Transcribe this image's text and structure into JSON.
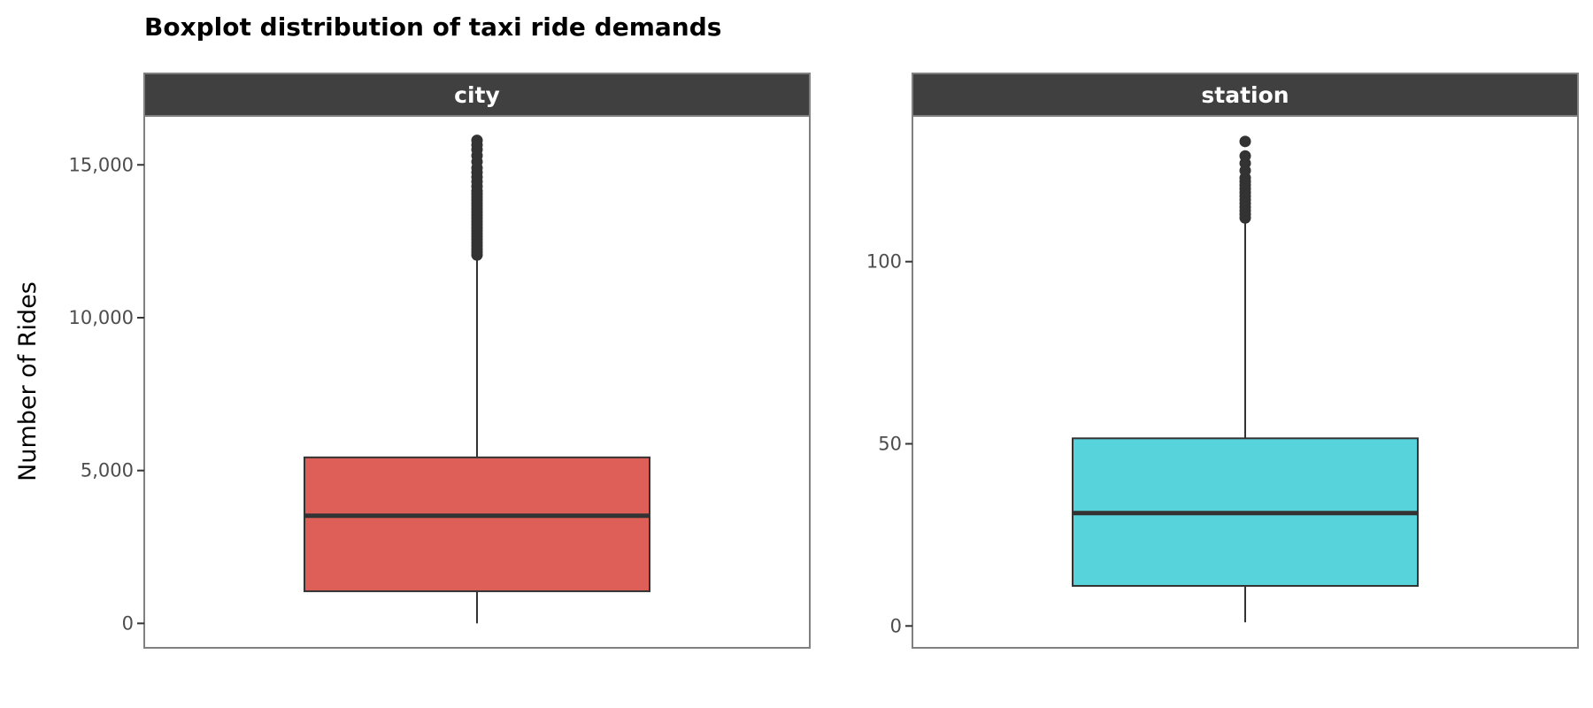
{
  "chart_data": {
    "type": "boxplot",
    "title": "Boxplot distribution of taxi ride demands",
    "ylabel": "Number of Rides",
    "xlabel": "",
    "grid": false,
    "legend": "none",
    "colors": {
      "strip": "#404040",
      "strip_text": "#ffffff",
      "panel_border": "#808080",
      "line": "#333333"
    },
    "panels": [
      {
        "name": "city",
        "ylim": [
          -800,
          16600
        ],
        "ticks": [
          0,
          5000,
          10000,
          15000
        ],
        "tick_labels": [
          "0",
          "5,000",
          "10,000",
          "15,000"
        ],
        "fill": "#de5e58",
        "box": {
          "whisker_low": 0,
          "q1": 1050,
          "median": 3520,
          "q3": 5430,
          "whisker_high": 11980
        },
        "outliers": [
          12050,
          12150,
          12250,
          12350,
          12450,
          12550,
          12650,
          12750,
          12850,
          12950,
          13050,
          13150,
          13250,
          13350,
          13450,
          13550,
          13650,
          13750,
          13850,
          13950,
          14050,
          14150,
          14300,
          14450,
          14600,
          14750,
          14900,
          15100,
          15300,
          15500,
          15650,
          15800
        ]
      },
      {
        "name": "station",
        "ylim": [
          -6,
          140
        ],
        "ticks": [
          0,
          50,
          100
        ],
        "tick_labels": [
          "0",
          "50",
          "100"
        ],
        "fill": "#57d3db",
        "box": {
          "whisker_low": 1,
          "q1": 11,
          "median": 31,
          "q3": 51.5,
          "whisker_high": 112
        },
        "outliers": [
          112,
          113,
          114,
          115,
          116,
          117,
          118,
          119,
          120,
          121,
          122,
          123,
          125,
          127,
          129,
          133
        ]
      }
    ]
  }
}
